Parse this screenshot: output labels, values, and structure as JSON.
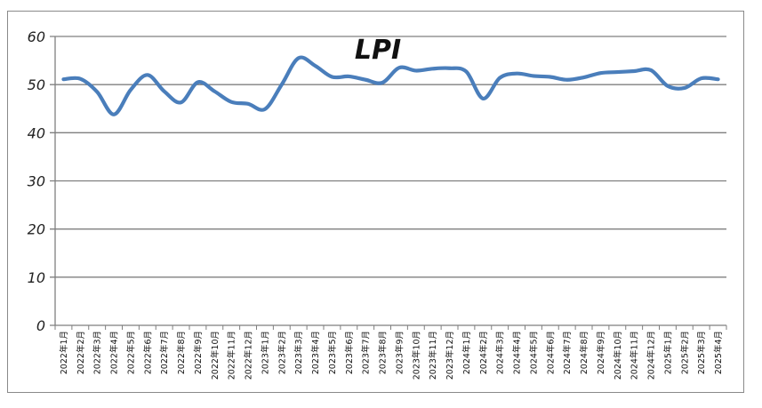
{
  "chart_data": {
    "type": "line",
    "title": "LPI",
    "xlabel": "",
    "ylabel": "",
    "ylim": [
      0,
      60
    ],
    "yticks": [
      "0",
      "10",
      "20",
      "30",
      "40",
      "50",
      "60"
    ],
    "grid": true,
    "legend": "none",
    "line_color": "#4a7ebb",
    "categories": [
      "2022年1月",
      "2022年2月",
      "2022年3月",
      "2022年4月",
      "2022年5月",
      "2022年6月",
      "2022年7月",
      "2022年8月",
      "2022年9月",
      "2022年10月",
      "2022年11月",
      "2022年12月",
      "2023年1月",
      "2023年2月",
      "2023年3月",
      "2023年4月",
      "2023年5月",
      "2023年6月",
      "2023年7月",
      "2023年8月",
      "2023年9月",
      "2023年10月",
      "2023年11月",
      "2023年12月",
      "2024年1月",
      "2024年2月",
      "2024年3月",
      "2024年4月",
      "2024年5月",
      "2024年6月",
      "2024年7月",
      "2024年8月",
      "2024年9月",
      "2024年10月",
      "2024年11月",
      "2024年12月",
      "2025年1月",
      "2025年2月",
      "2025年3月",
      "2025年4月"
    ],
    "series": [
      {
        "values": [
          51.1,
          51.2,
          48.5,
          43.8,
          48.9,
          52.0,
          48.6,
          46.3,
          50.5,
          48.6,
          46.4,
          46.0,
          44.9,
          50.0,
          55.5,
          53.9,
          51.6,
          51.7,
          51.0,
          50.4,
          53.5,
          52.9,
          53.3,
          53.4,
          52.7,
          47.1,
          51.4,
          52.3,
          51.8,
          51.6,
          51.0,
          51.5,
          52.4,
          52.6,
          52.8,
          53.0,
          49.7,
          49.3,
          51.3,
          51.1
        ]
      }
    ]
  }
}
